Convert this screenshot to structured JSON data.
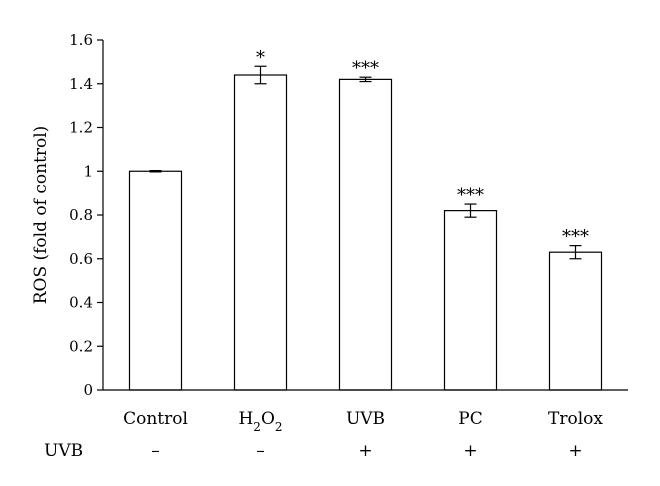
{
  "chart_data": {
    "type": "bar",
    "ylabel": "ROS (fold of control)",
    "ylim": [
      0,
      1.6
    ],
    "yticks": [
      "0",
      "0.2",
      "0.4",
      "0.6",
      "0.8",
      "1",
      "1.2",
      "1.4",
      "1.6"
    ],
    "ytick_values": [
      0,
      0.2,
      0.4,
      0.6,
      0.8,
      1.0,
      1.2,
      1.4,
      1.6
    ],
    "categories": [
      {
        "text": "Control",
        "sub": false
      },
      {
        "text": "H2O2",
        "sub": true,
        "base": "H",
        "sub1": "2",
        "mid": "O",
        "sub2": "2"
      },
      {
        "text": "UVB",
        "sub": false
      },
      {
        "text": "PC",
        "sub": false
      },
      {
        "text": "Trolox",
        "sub": false
      }
    ],
    "values": [
      1.0,
      1.44,
      1.42,
      0.82,
      0.63
    ],
    "errors": [
      0.003,
      0.04,
      0.01,
      0.03,
      0.03
    ],
    "significance": [
      "",
      "*",
      "***",
      "***",
      "***"
    ],
    "condition_row": {
      "label": "UVB",
      "values": [
        "–",
        "–",
        "+",
        "+",
        "+"
      ]
    },
    "grid": false,
    "bar_color": "#ffffff",
    "bar_edge": "#000000"
  }
}
